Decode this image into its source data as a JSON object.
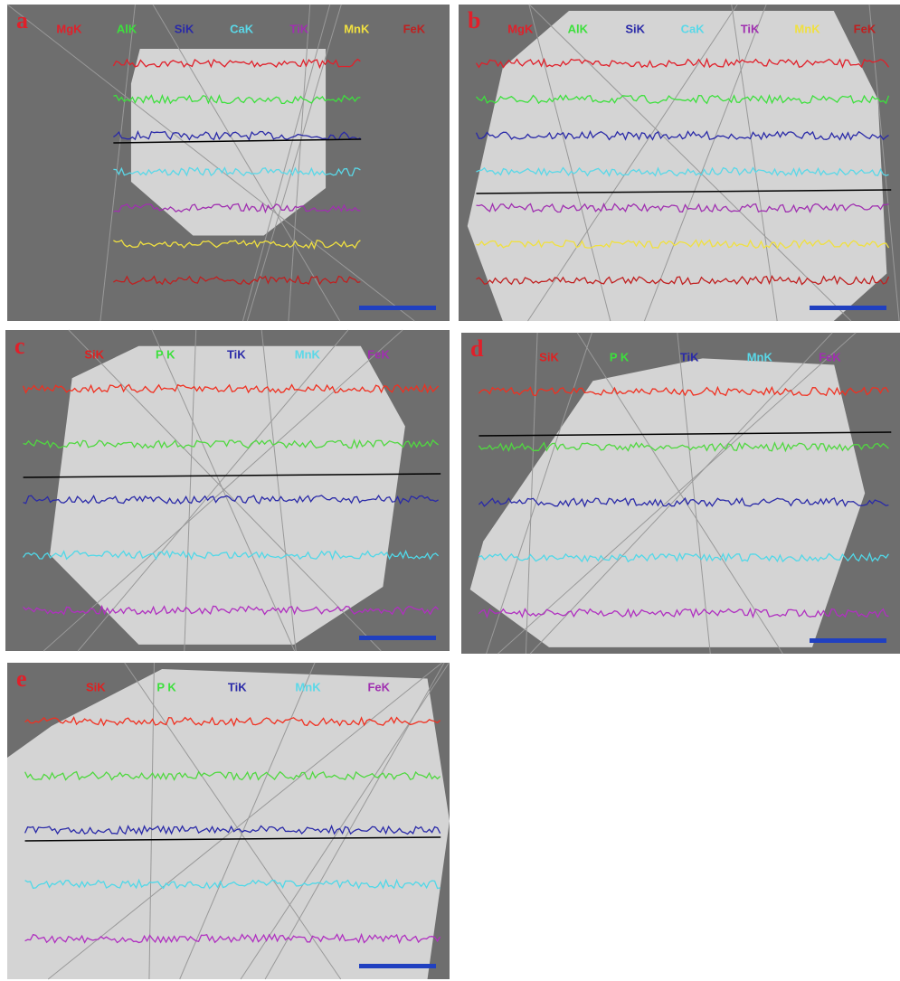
{
  "panels": [
    {
      "label": "a",
      "elements": [
        "MgK",
        "AlK",
        "SiK",
        "CaK",
        "TiK",
        "MnK",
        "FeK"
      ]
    },
    {
      "label": "b",
      "elements": [
        "MgK",
        "AlK",
        "SiK",
        "CaK",
        "TiK",
        "MnK",
        "FeK"
      ]
    },
    {
      "label": "c",
      "elements": [
        "SiK",
        "P K",
        "TiK",
        "MnK",
        "FeK"
      ]
    },
    {
      "label": "d",
      "elements": [
        "SiK",
        "P K",
        "TiK",
        "MnK",
        "FeK"
      ]
    },
    {
      "label": "e",
      "elements": [
        "SiK",
        "P K",
        "TiK",
        "MnK",
        "FeK"
      ]
    }
  ]
}
